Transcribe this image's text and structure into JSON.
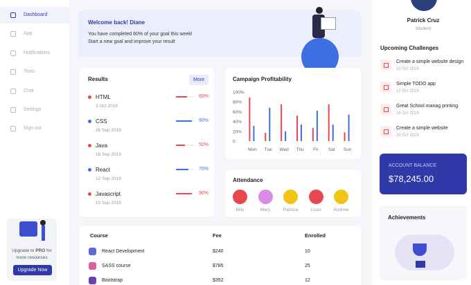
{
  "sidebar": {
    "items": [
      "Dashboard",
      "App",
      "Notifications",
      "Tools",
      "Chat",
      "Settings",
      "Sign out"
    ],
    "active": 0
  },
  "upgrade": {
    "text_before": "Upgrade to",
    "highlight": "PRO",
    "text_after": "for more resources",
    "button": "Upgrade Now"
  },
  "welcome": {
    "title": "Welcome back! Diane",
    "lines": [
      "You have completed 60% of your goal this week!",
      "Start a new goal and improve your result"
    ]
  },
  "results": {
    "title": "Results",
    "button": "More",
    "items": [
      {
        "name": "HTML",
        "date": "3 Oct 2019",
        "percent": 60,
        "label": "60%",
        "color": "#e8474f"
      },
      {
        "name": "CSS",
        "date": "26 Sep 2019",
        "percent": 90,
        "label": "90%",
        "color": "#3d6fe0"
      },
      {
        "name": "Java",
        "date": "18 Sep 2019",
        "percent": 50,
        "label": "50%",
        "color": "#e8474f"
      },
      {
        "name": "React",
        "date": "12 Sep 2019",
        "percent": 70,
        "label": "70%",
        "color": "#3d6fe0"
      },
      {
        "name": "Javascript",
        "date": "10 Sep 2019",
        "percent": 90,
        "label": "90%",
        "color": "#e8474f"
      }
    ]
  },
  "campaign": {
    "title": "Campaign Profitability",
    "type": "bar",
    "categories": [
      "Mon",
      "Tue",
      "Wed",
      "Thu",
      "Fri",
      "Sat",
      "Sun"
    ],
    "ylim": [
      0,
      100
    ],
    "yticks": [
      {
        "value": 0,
        "label": "0"
      },
      {
        "value": 20,
        "label": "20%"
      },
      {
        "value": 40,
        "label": "40%"
      },
      {
        "value": 60,
        "label": "60%"
      },
      {
        "value": 80,
        "label": "80%"
      },
      {
        "value": 100,
        "label": "100%"
      }
    ],
    "series": [
      {
        "color": "#e8474f",
        "values": [
          89,
          17,
          75,
          52,
          27,
          75,
          18
        ]
      },
      {
        "color": "#3d6fe0",
        "values": [
          31,
          68,
          20,
          34,
          62,
          34,
          54
        ]
      }
    ]
  },
  "attendance": {
    "title": "Attendance",
    "people": [
      {
        "name": "Billy",
        "color": "#e8474f"
      },
      {
        "name": "Mary",
        "color": "#d98be6"
      },
      {
        "name": "Patricia",
        "color": "#f2c318"
      },
      {
        "name": "Louis",
        "color": "#e8474f"
      },
      {
        "name": "Andrew",
        "color": "#f2c318"
      }
    ]
  },
  "courses": {
    "columns": [
      "Course",
      "Fee",
      "Enrolled"
    ],
    "rows": [
      {
        "course": "React Development",
        "fee": "$240",
        "enrolled": 10,
        "icon_color": "#5a6ad8"
      },
      {
        "course": "SASS course",
        "fee": "$785",
        "enrolled": 25,
        "icon_color": "#d9609a"
      },
      {
        "course": "Bootstrap",
        "fee": "$352",
        "enrolled": 12,
        "icon_color": "#6b3fb5"
      }
    ]
  },
  "profile": {
    "name": "Patrick Cruz",
    "role": "Student"
  },
  "challenges": {
    "title": "Upcoming Challenges",
    "items": [
      {
        "title": "Create a simple website design",
        "date": "10 Oct 2019"
      },
      {
        "title": "Simple TODO app",
        "date": "12 Oct 2019"
      },
      {
        "title": "Great School manag printing",
        "date": "16 Oct 2019"
      },
      {
        "title": "Create a simple website",
        "date": "20 Oct 2019"
      }
    ]
  },
  "balance": {
    "label": "ACCOUNT BALANCE",
    "amount": "$78,245.00"
  },
  "achievements": {
    "title": "Achievements"
  }
}
